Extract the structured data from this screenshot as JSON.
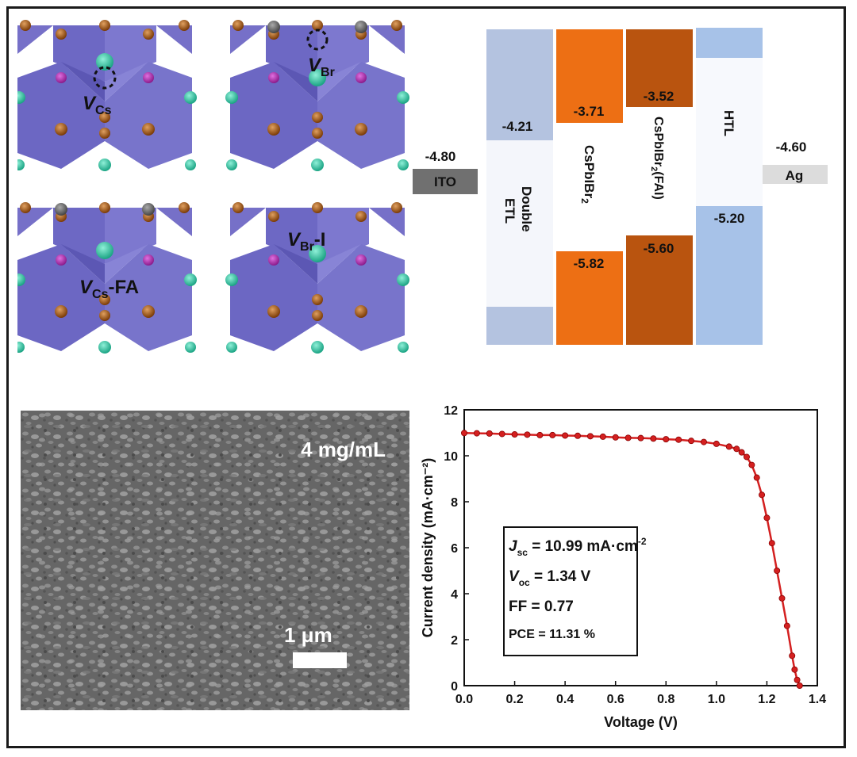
{
  "structures": [
    {
      "main": "V",
      "sub": "Cs",
      "suffix": ""
    },
    {
      "main": "V",
      "sub": "Br",
      "suffix": ""
    },
    {
      "main": "V",
      "sub": "Cs",
      "suffix": "-FA"
    },
    {
      "main": "V",
      "sub": "Br",
      "suffix": "-I"
    }
  ],
  "band_diagram": {
    "left_electrode": {
      "label": "ITO",
      "value": "-4.80"
    },
    "right_electrode": {
      "label": "Ag",
      "value": "-4.60"
    },
    "layers": [
      {
        "name": "Double ETL",
        "cb": "-4.21",
        "vb": "",
        "color": "#b4c3e0"
      },
      {
        "name": "CsPbIBr2",
        "cb": "-3.71",
        "vb": "-5.82",
        "color": "#ed6f14"
      },
      {
        "name": "CsPbIBr2(FAI)",
        "cb": "-3.52",
        "vb": "-5.60",
        "color": "#b9540f"
      },
      {
        "name": "HTL",
        "cb": "",
        "vb": "-5.20",
        "color": "#a7c2e8"
      }
    ]
  },
  "sem": {
    "concentration_label": "4 mg/mL",
    "scale_label": "1 μm"
  },
  "chart_data": {
    "type": "line",
    "xlabel": "Voltage (V)",
    "ylabel": "Current density (mA·cm⁻²)",
    "xlim": [
      0.0,
      1.4
    ],
    "ylim": [
      0,
      12
    ],
    "xticks": [
      "0.0",
      "0.2",
      "0.4",
      "0.6",
      "0.8",
      "1.0",
      "1.2",
      "1.4"
    ],
    "yticks": [
      "0",
      "2",
      "4",
      "6",
      "8",
      "10",
      "12"
    ],
    "color": "#d42020",
    "x": [
      0.0,
      0.05,
      0.1,
      0.15,
      0.2,
      0.25,
      0.3,
      0.35,
      0.4,
      0.45,
      0.5,
      0.55,
      0.6,
      0.65,
      0.7,
      0.75,
      0.8,
      0.85,
      0.9,
      0.95,
      1.0,
      1.05,
      1.08,
      1.1,
      1.12,
      1.14,
      1.16,
      1.18,
      1.2,
      1.22,
      1.24,
      1.26,
      1.28,
      1.3,
      1.31,
      1.32,
      1.33
    ],
    "y": [
      10.99,
      10.98,
      10.97,
      10.95,
      10.93,
      10.92,
      10.9,
      10.9,
      10.88,
      10.87,
      10.85,
      10.83,
      10.8,
      10.78,
      10.77,
      10.75,
      10.72,
      10.7,
      10.65,
      10.6,
      10.52,
      10.4,
      10.3,
      10.15,
      9.95,
      9.6,
      9.05,
      8.3,
      7.3,
      6.2,
      5.0,
      3.8,
      2.6,
      1.3,
      0.7,
      0.25,
      0.0
    ],
    "annotation": {
      "jsc": {
        "sym": "J",
        "sub": "sc",
        "text": " = 10.99 mA·cm",
        "sup": "-2"
      },
      "voc": {
        "sym": "V",
        "sub": "oc",
        "text": " =  1.34 V"
      },
      "ff": "FF = 0.77",
      "pce": "PCE = 11.31 %"
    }
  }
}
